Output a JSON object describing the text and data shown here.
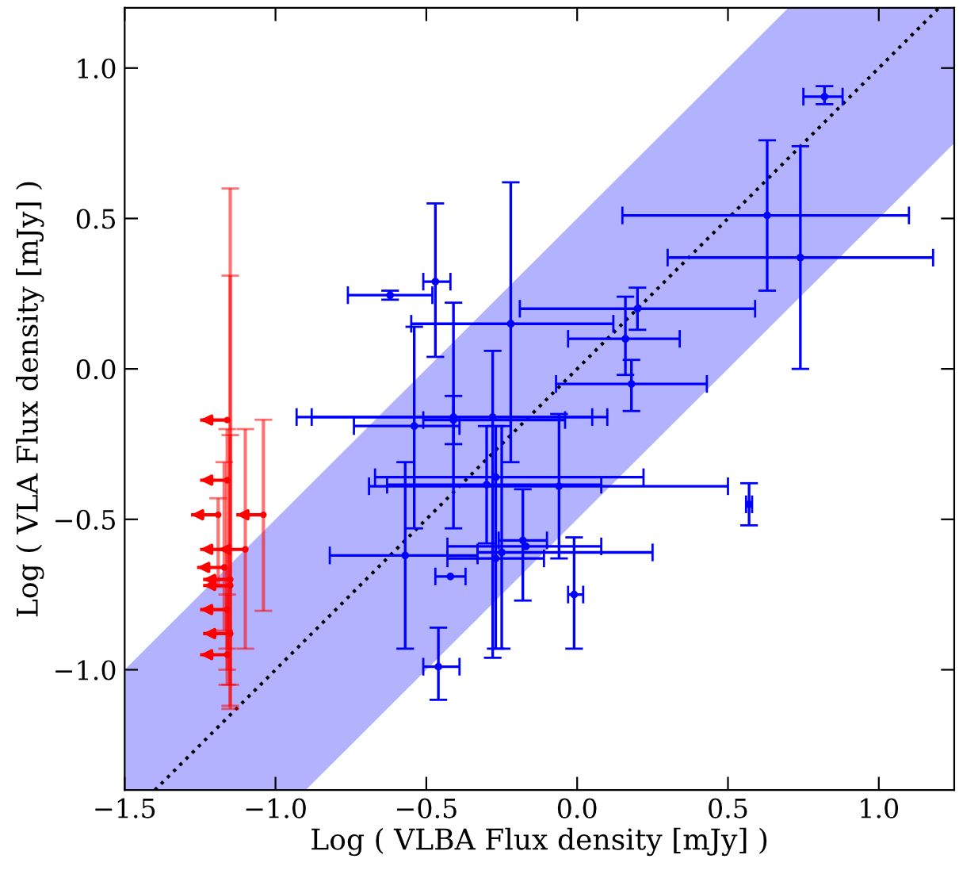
{
  "chart_data": {
    "type": "scatter",
    "xlabel": "Log ( VLBA Flux density [mJy] )",
    "ylabel": "Log ( VLA Flux density [mJy] )",
    "xlim": [
      -1.5,
      1.25
    ],
    "ylim": [
      -1.4,
      1.2
    ],
    "xticks": [
      {
        "value": -1.5,
        "label": "−1.5"
      },
      {
        "value": -1.0,
        "label": "−1.0"
      },
      {
        "value": -0.5,
        "label": "−0.5"
      },
      {
        "value": 0.0,
        "label": "0.0"
      },
      {
        "value": 0.5,
        "label": "0.5"
      },
      {
        "value": 1.0,
        "label": "1.0"
      }
    ],
    "yticks": [
      {
        "value": -1.0,
        "label": "−1.0"
      },
      {
        "value": -0.5,
        "label": "−0.5"
      },
      {
        "value": 0.0,
        "label": "0.0"
      },
      {
        "value": 0.5,
        "label": "0.5"
      },
      {
        "value": 1.0,
        "label": "1.0"
      }
    ],
    "grid": false,
    "series": [
      {
        "type": "line",
        "color": "#000000",
        "line_style": "dotted",
        "marker": "none",
        "x": [
          -1.5,
          -1.4,
          -0.9,
          0.7,
          1.2,
          1.25
        ],
        "values": [
          null,
          -1.4,
          -0.9,
          0.7,
          1.2,
          null
        ],
        "lower": [
          -1.4,
          -1.4,
          -1.4,
          0.2,
          0.7,
          0.75
        ],
        "upper": [
          -1.0,
          -0.9,
          -0.4,
          1.2,
          1.2,
          1.2
        ]
      },
      {
        "color": "#0000ff",
        "marker": "circle",
        "x": [
          0.82,
          0.63,
          0.74,
          0.2,
          0.16,
          0.18,
          0.57,
          -0.62,
          -0.47,
          -0.22,
          -0.54,
          -0.41,
          -0.28,
          -0.27,
          -0.3,
          -0.06,
          -0.57,
          -0.27,
          -0.25,
          -0.18,
          -0.17,
          -0.01,
          -0.42,
          -0.46,
          -0.41
        ],
        "values": [
          0.905,
          0.51,
          0.37,
          0.2,
          0.1,
          -0.05,
          -0.45,
          0.245,
          0.29,
          0.15,
          -0.19,
          -0.16,
          -0.16,
          -0.36,
          -0.385,
          -0.39,
          -0.62,
          -0.63,
          -0.61,
          -0.57,
          -0.59,
          -0.75,
          -0.69,
          -0.99,
          -0.17
        ],
        "xerrors": [
          [
            0.75,
            0.88
          ],
          [
            0.15,
            1.1
          ],
          [
            0.3,
            1.18
          ],
          [
            -0.19,
            0.59
          ],
          [
            -0.03,
            0.34
          ],
          [
            -0.07,
            0.43
          ],
          [
            0.56,
            0.58
          ],
          [
            -0.76,
            -0.48
          ],
          [
            -0.51,
            -0.42
          ],
          [
            -0.55,
            0.12
          ],
          [
            -0.74,
            -0.39
          ],
          [
            -0.93,
            0.05
          ],
          [
            -0.88,
            0.1
          ],
          [
            -0.67,
            0.22
          ],
          [
            -0.63,
            0.08
          ],
          [
            -0.69,
            0.5
          ],
          [
            -0.82,
            -0.33
          ],
          [
            -0.43,
            -0.11
          ],
          [
            -0.33,
            0.25
          ],
          [
            -0.26,
            -0.1
          ],
          [
            -0.43,
            0.08
          ],
          [
            -0.03,
            0.02
          ],
          [
            -0.47,
            -0.37
          ],
          [
            -0.51,
            -0.39
          ],
          [
            -0.51,
            -0.04
          ]
        ],
        "errors": [
          [
            0.88,
            0.94
          ],
          [
            0.26,
            0.76
          ],
          [
            0.0,
            0.74
          ],
          [
            0.13,
            0.27
          ],
          [
            -0.02,
            0.24
          ],
          [
            -0.14,
            0.03
          ],
          [
            -0.52,
            -0.38
          ],
          [
            0.23,
            0.26
          ],
          [
            0.04,
            0.55
          ],
          [
            -0.31,
            0.62
          ],
          [
            -0.53,
            0.14
          ],
          [
            -0.53,
            0.22
          ],
          [
            -0.96,
            0.06
          ],
          [
            -0.93,
            -0.19
          ],
          [
            -0.58,
            -0.19
          ],
          [
            -0.63,
            -0.15
          ],
          [
            -0.93,
            -0.31
          ],
          null,
          [
            -0.93,
            -0.19
          ],
          [
            -0.77,
            -0.4
          ],
          null,
          [
            -0.93,
            -0.56
          ],
          null,
          [
            -1.1,
            -0.86
          ],
          [
            -0.25,
            -0.09
          ]
        ]
      },
      {
        "color": "#ff0000",
        "marker": "circle",
        "x": [
          -1.16,
          -1.16,
          -1.19,
          -1.04,
          -1.16,
          -1.17,
          -1.15,
          -1.15,
          -1.16,
          -1.15,
          -1.16,
          -1.1
        ],
        "values": [
          -0.17,
          -0.37,
          -0.485,
          -0.485,
          -0.6,
          -0.66,
          -0.7,
          -0.72,
          -0.8,
          -0.88,
          -0.95,
          -0.6
        ],
        "xerrors": [
          [
            -1.25,
            -1.16
          ],
          [
            -1.25,
            -1.16
          ],
          [
            -1.28,
            -1.19
          ],
          [
            -1.13,
            -1.04
          ],
          [
            -1.25,
            -1.16
          ],
          [
            -1.26,
            -1.17
          ],
          [
            -1.24,
            -1.15
          ],
          [
            -1.24,
            -1.15
          ],
          [
            -1.25,
            -1.16
          ],
          [
            -1.24,
            -1.15
          ],
          [
            -1.25,
            -1.16
          ],
          [
            -1.19,
            -1.1
          ]
        ],
        "errors": [
          null,
          null,
          [
            -0.725,
            -0.43
          ],
          [
            -0.804,
            -0.169
          ],
          [
            -0.93,
            -0.2
          ],
          [
            -0.87,
            -0.31
          ],
          [
            -1.05,
            0.31
          ],
          [
            -1.12,
            0.6
          ],
          [
            -1.0,
            -0.6
          ],
          [
            -1.13,
            -0.22
          ],
          [
            -1.05,
            -0.75
          ],
          [
            -0.93,
            -0.2
          ]
        ]
      }
    ]
  }
}
